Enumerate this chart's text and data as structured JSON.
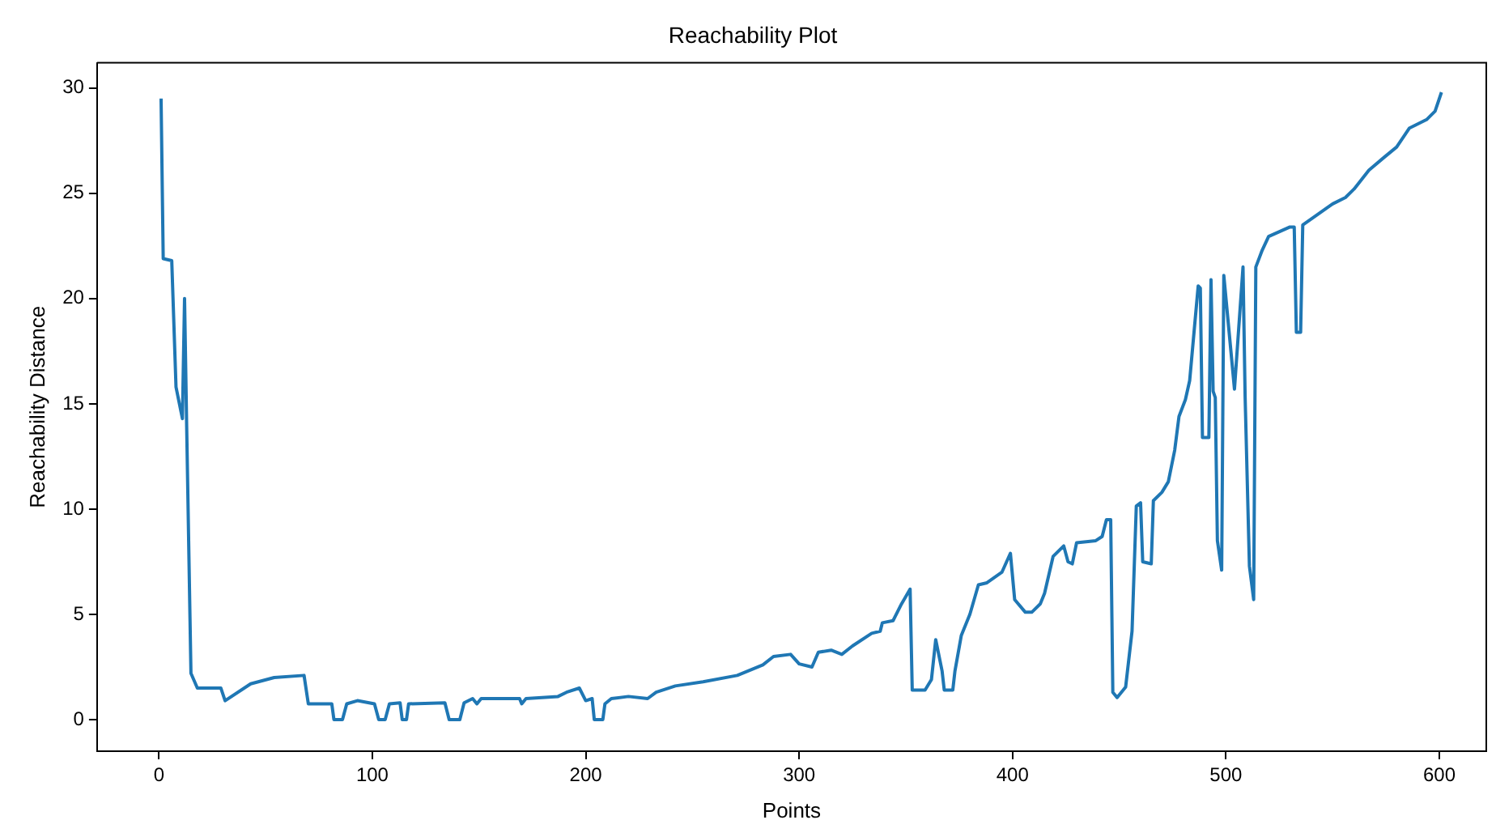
{
  "chart_data": {
    "type": "line",
    "title": "Reachability Plot",
    "xlabel": "Points",
    "ylabel": "Reachability Distance",
    "xlim": [
      -29,
      622
    ],
    "ylim": [
      -1.5,
      31.2
    ],
    "xticks": [
      0,
      100,
      200,
      300,
      400,
      500,
      600
    ],
    "yticks": [
      0,
      5,
      10,
      15,
      20,
      25,
      30
    ],
    "grid": false,
    "legend": false,
    "marker": "none",
    "line_style": "solid",
    "series": [
      {
        "color": "#1f77b4",
        "x": [
          1,
          2,
          6,
          8,
          11,
          12,
          13,
          15,
          18,
          29,
          31,
          43,
          54,
          68,
          70,
          81,
          82,
          86,
          88,
          93,
          101,
          103,
          106,
          108,
          113,
          114,
          116,
          117,
          134,
          136,
          141,
          143,
          147,
          149,
          151,
          169,
          170,
          172,
          187,
          191,
          197,
          200,
          203,
          204,
          208,
          209,
          212,
          220,
          229,
          233,
          242,
          255,
          271,
          283,
          288,
          296,
          300,
          306,
          309,
          315,
          320,
          325,
          334,
          338,
          339,
          344,
          348,
          352,
          353,
          359,
          362,
          364,
          367,
          368,
          372,
          373,
          376,
          380,
          384,
          388,
          395,
          399,
          401,
          406,
          409,
          413,
          415,
          419,
          424,
          426,
          428,
          430,
          439,
          442,
          444,
          446,
          447,
          449,
          453,
          456,
          458,
          460,
          461,
          465,
          466,
          470,
          473,
          476,
          478,
          481,
          483,
          487,
          488,
          489,
          492,
          493,
          494,
          495,
          496,
          498,
          499,
          504,
          508,
          509,
          511,
          513,
          514,
          517,
          520,
          530,
          532,
          533,
          535,
          536,
          543,
          550,
          556,
          560,
          567,
          574,
          580,
          586,
          594,
          598,
          601
        ],
        "values": [
          29.5,
          21.9,
          21.8,
          15.8,
          14.3,
          20,
          13.9,
          2.2,
          1.5,
          1.5,
          0.9,
          1.7,
          2.0,
          2.1,
          0.75,
          0.75,
          0,
          0,
          0.75,
          0.9,
          0.75,
          0,
          0,
          0.75,
          0.8,
          0,
          0,
          0.75,
          0.8,
          0,
          0,
          0.8,
          1.0,
          0.75,
          1.0,
          1.0,
          0.75,
          1.0,
          1.1,
          1.3,
          1.5,
          0.9,
          1.0,
          0,
          0,
          0.75,
          1.0,
          1.1,
          1.0,
          1.3,
          1.6,
          1.8,
          2.1,
          2.6,
          3.0,
          3.1,
          2.65,
          2.5,
          3.2,
          3.3,
          3.1,
          3.5,
          4.1,
          4.2,
          4.6,
          4.7,
          5.5,
          6.2,
          1.4,
          1.4,
          1.9,
          3.8,
          2.3,
          1.4,
          1.4,
          2.3,
          4.0,
          5.0,
          6.4,
          6.5,
          7.0,
          7.9,
          5.7,
          5.1,
          5.1,
          5.5,
          6.0,
          7.75,
          8.25,
          7.5,
          7.4,
          8.4,
          8.5,
          8.7,
          9.5,
          9.5,
          1.3,
          1.05,
          1.55,
          4.2,
          10.15,
          10.3,
          7.5,
          7.4,
          10.4,
          10.8,
          11.3,
          12.8,
          14.4,
          15.2,
          16.1,
          20.6,
          20.5,
          13.4,
          13.4,
          20.9,
          15.6,
          15.3,
          8.5,
          7.1,
          21.1,
          15.7,
          21.5,
          15.3,
          7.3,
          5.7,
          21.5,
          22.3,
          22.95,
          23.4,
          23.4,
          18.4,
          18.4,
          23.5,
          24.0,
          24.5,
          24.8,
          25.2,
          26.1,
          26.7,
          27.2,
          28.1,
          28.5,
          28.9,
          29.8
        ]
      }
    ]
  }
}
